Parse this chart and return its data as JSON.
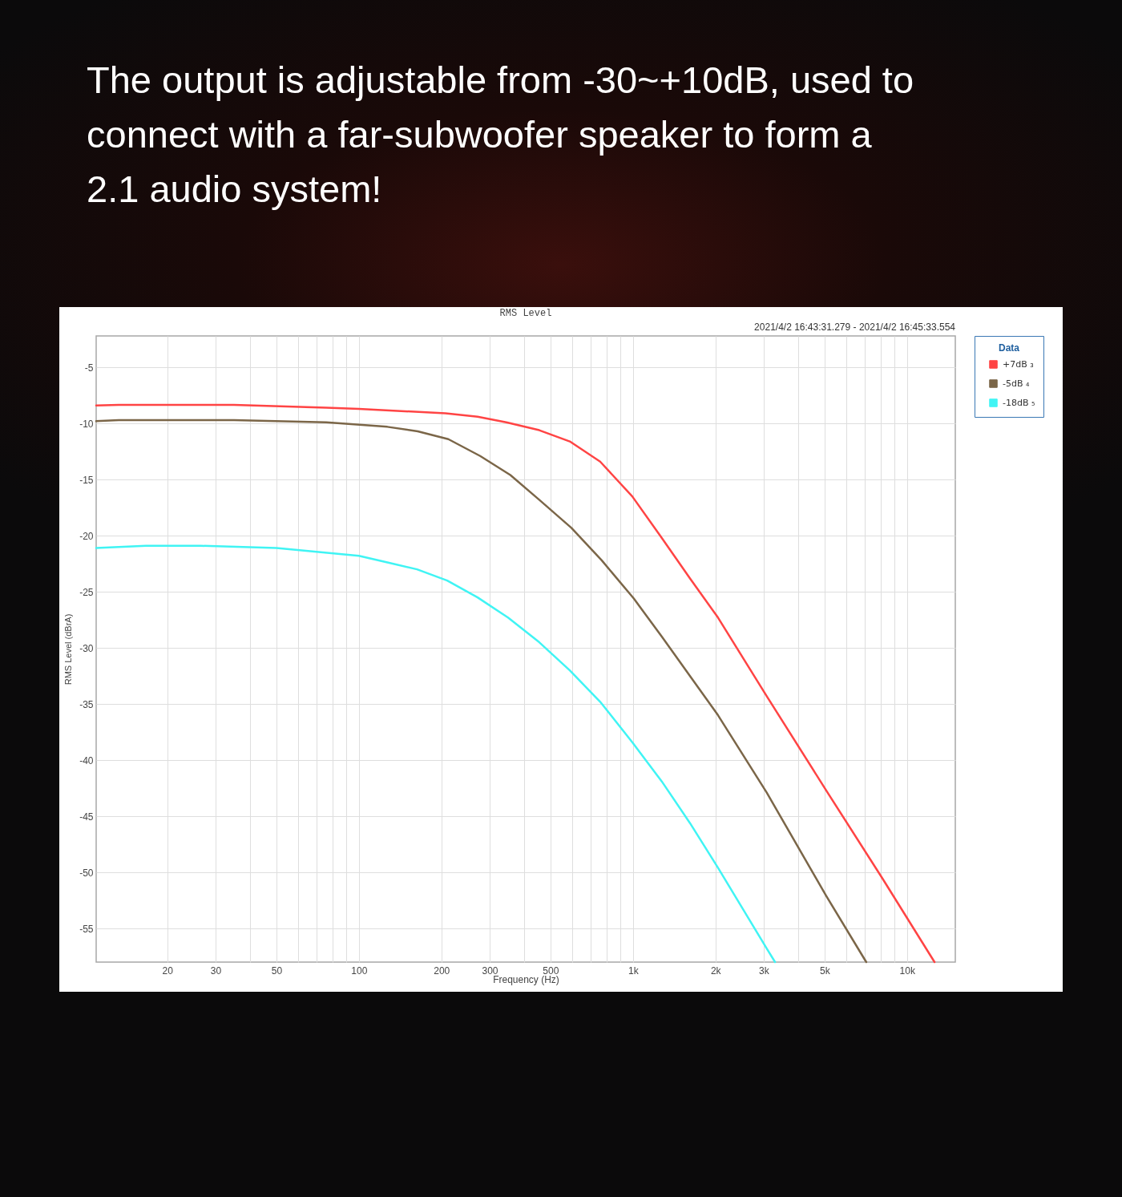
{
  "chart_data": {
    "type": "line",
    "title": "The output is adjustable from -30~+10dB, used to connect with a far-subwoofer speaker to form a 2.1 audio system!",
    "subtitle": "RMS Level",
    "xlabel": "Frequency (Hz)",
    "ylabel": "RMS Level (dBrA)",
    "legend_title": "Data",
    "annotations": [
      "2021/4/2 16:43:31.279 - 2021/4/2 16:45:33.554"
    ],
    "log": "x",
    "xlim": [
      11,
      15000
    ],
    "ylim": [
      -58,
      -2.2
    ],
    "xticks": [
      20,
      30,
      {
        "value": 40,
        "label": null
      },
      50,
      {
        "value": 60,
        "label": null
      },
      {
        "value": 70,
        "label": null
      },
      {
        "value": 80,
        "label": null
      },
      {
        "value": 90,
        "label": null
      },
      100,
      200,
      300,
      {
        "value": 400,
        "label": null
      },
      500,
      {
        "value": 600,
        "label": null
      },
      {
        "value": 700,
        "label": null
      },
      {
        "value": 800,
        "label": null
      },
      {
        "value": 900,
        "label": null
      },
      {
        "value": 1000,
        "label": "1k"
      },
      {
        "value": 2000,
        "label": "2k"
      },
      {
        "value": 3000,
        "label": "3k"
      },
      {
        "value": 4000,
        "label": null
      },
      {
        "value": 5000,
        "label": "5k"
      },
      {
        "value": 6000,
        "label": null
      },
      {
        "value": 7000,
        "label": null
      },
      {
        "value": 8000,
        "label": null
      },
      {
        "value": 9000,
        "label": null
      },
      {
        "value": 10000,
        "label": "10k"
      }
    ],
    "yticks": [
      -55,
      -50,
      -45,
      -40,
      -35,
      -30,
      -25,
      -20,
      -15,
      -10,
      -5
    ],
    "grid": true,
    "legend": "top right",
    "series": [
      {
        "name": "+7dB ₃",
        "color": "#ff4444",
        "x": [
          11,
          13.3,
          20,
          35,
          76,
          100,
          207,
          271,
          345,
          455,
          588,
          759,
          994,
          1274,
          1613,
          2043,
          3077,
          5070,
          8110,
          12600
        ],
        "values": [
          -8.4,
          -8.35,
          -8.35,
          -8.35,
          -8.6,
          -8.7,
          -9.1,
          -9.4,
          -9.9,
          -10.6,
          -11.6,
          -13.4,
          -16.5,
          -20.2,
          -23.8,
          -27.3,
          -34.3,
          -42.7,
          -50.5,
          -58
        ]
      },
      {
        "name": "-5dB ₄",
        "color": "#7b6648",
        "x": [
          11,
          13.3,
          35,
          76,
          127,
          164,
          212,
          277,
          357,
          455,
          596,
          769,
          1007,
          1274,
          1613,
          2043,
          3077,
          5070,
          7100
        ],
        "values": [
          -9.8,
          -9.7,
          -9.7,
          -9.9,
          -10.3,
          -10.7,
          -11.4,
          -12.9,
          -14.6,
          -16.8,
          -19.3,
          -22.2,
          -25.6,
          -29.0,
          -32.5,
          -36.0,
          -42.9,
          -52.1,
          -58
        ]
      },
      {
        "name": "-18dB ₅",
        "color": "#40f4f4",
        "x": [
          11,
          16.7,
          26.5,
          50,
          100,
          128,
          163,
          210,
          271,
          350,
          455,
          588,
          759,
          994,
          1274,
          1613,
          2043,
          3077,
          3300
        ],
        "values": [
          -21.1,
          -20.9,
          -20.9,
          -21.1,
          -21.8,
          -22.4,
          -23.0,
          -24.0,
          -25.5,
          -27.3,
          -29.5,
          -32.0,
          -34.8,
          -38.4,
          -41.9,
          -45.6,
          -49.6,
          -56.8,
          -58
        ]
      }
    ]
  }
}
